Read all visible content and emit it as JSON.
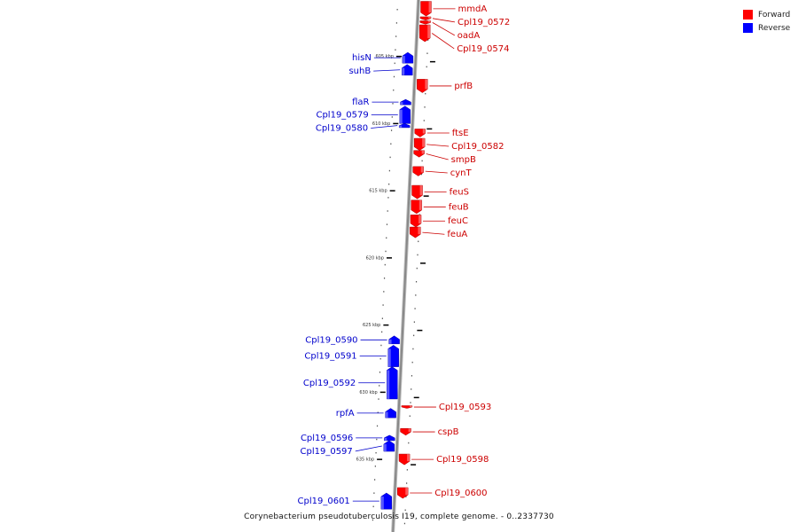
{
  "colors": {
    "forward": "#ff0000",
    "reverse": "#0000ff",
    "axis": "#888888",
    "forward_text": "#cc0000",
    "reverse_text": "#0000cc"
  },
  "legend": [
    {
      "label": "Forward",
      "color": "#ff0000"
    },
    {
      "label": "Reverse",
      "color": "#0000ff"
    }
  ],
  "caption": "Corynebacterium pseudotuberculosis I19, complete genome. - 0..2337730",
  "ticks": [
    {
      "label": "605 kbp",
      "kbp": 605
    },
    {
      "label": "610 kbp",
      "kbp": 610
    },
    {
      "label": "615 kbp",
      "kbp": 615
    },
    {
      "label": "620 kbp",
      "kbp": 620
    },
    {
      "label": "625 kbp",
      "kbp": 625
    },
    {
      "label": "630 kbp",
      "kbp": 630
    },
    {
      "label": "635 kbp",
      "kbp": 635
    }
  ],
  "genes": [
    {
      "name": "mmdA",
      "strand": "forward",
      "start_kbp": 600.9,
      "end_kbp": 602.0
    },
    {
      "name": "Cpl19_0572",
      "strand": "forward",
      "start_kbp": 602.05,
      "end_kbp": 602.3
    },
    {
      "name": "oadA",
      "strand": "forward",
      "start_kbp": 602.35,
      "end_kbp": 602.6
    },
    {
      "name": "Cpl19_0574",
      "strand": "forward",
      "start_kbp": 602.65,
      "end_kbp": 603.9
    },
    {
      "name": "hisN",
      "strand": "reverse",
      "start_kbp": 604.7,
      "end_kbp": 605.5
    },
    {
      "name": "suhB",
      "strand": "reverse",
      "start_kbp": 605.6,
      "end_kbp": 606.4
    },
    {
      "name": "prfB",
      "strand": "forward",
      "start_kbp": 606.7,
      "end_kbp": 607.7
    },
    {
      "name": "flaR",
      "strand": "reverse",
      "start_kbp": 608.2,
      "end_kbp": 608.6
    },
    {
      "name": "Cpl19_0579",
      "strand": "reverse",
      "start_kbp": 608.7,
      "end_kbp": 610.0
    },
    {
      "name": "Cpl19_0580",
      "strand": "reverse",
      "start_kbp": 610.0,
      "end_kbp": 610.3
    },
    {
      "name": "ftsE",
      "strand": "forward",
      "start_kbp": 610.4,
      "end_kbp": 611.0
    },
    {
      "name": "Cpl19_0582",
      "strand": "forward",
      "start_kbp": 611.1,
      "end_kbp": 612.0
    },
    {
      "name": "smpB",
      "strand": "forward",
      "start_kbp": 612.0,
      "end_kbp": 612.5
    },
    {
      "name": "cynT",
      "strand": "forward",
      "start_kbp": 613.2,
      "end_kbp": 613.9
    },
    {
      "name": "feuS",
      "strand": "forward",
      "start_kbp": 614.6,
      "end_kbp": 615.6
    },
    {
      "name": "feuB",
      "strand": "forward",
      "start_kbp": 615.7,
      "end_kbp": 616.7
    },
    {
      "name": "feuC",
      "strand": "forward",
      "start_kbp": 616.8,
      "end_kbp": 617.7
    },
    {
      "name": "feuA",
      "strand": "forward",
      "start_kbp": 617.7,
      "end_kbp": 618.5
    },
    {
      "name": "Cpl19_0590",
      "strand": "reverse",
      "start_kbp": 625.8,
      "end_kbp": 626.4
    },
    {
      "name": "Cpl19_0591",
      "strand": "reverse",
      "start_kbp": 626.5,
      "end_kbp": 628.1
    },
    {
      "name": "Cpl19_0592",
      "strand": "reverse",
      "start_kbp": 628.1,
      "end_kbp": 630.5
    },
    {
      "name": "rpfA",
      "strand": "reverse",
      "start_kbp": 631.2,
      "end_kbp": 631.9
    },
    {
      "name": "Cpl19_0593",
      "strand": "forward",
      "start_kbp": 631.0,
      "end_kbp": 631.2
    },
    {
      "name": "cspB",
      "strand": "forward",
      "start_kbp": 632.7,
      "end_kbp": 633.2
    },
    {
      "name": "Cpl19_0596",
      "strand": "reverse",
      "start_kbp": 633.2,
      "end_kbp": 633.6
    },
    {
      "name": "Cpl19_0597",
      "strand": "reverse",
      "start_kbp": 633.6,
      "end_kbp": 634.4
    },
    {
      "name": "Cpl19_0598",
      "strand": "forward",
      "start_kbp": 634.6,
      "end_kbp": 635.4
    },
    {
      "name": "Cpl19_0600",
      "strand": "forward",
      "start_kbp": 637.1,
      "end_kbp": 637.9
    },
    {
      "name": "Cpl19_0601",
      "strand": "reverse",
      "start_kbp": 637.5,
      "end_kbp": 638.7
    }
  ]
}
